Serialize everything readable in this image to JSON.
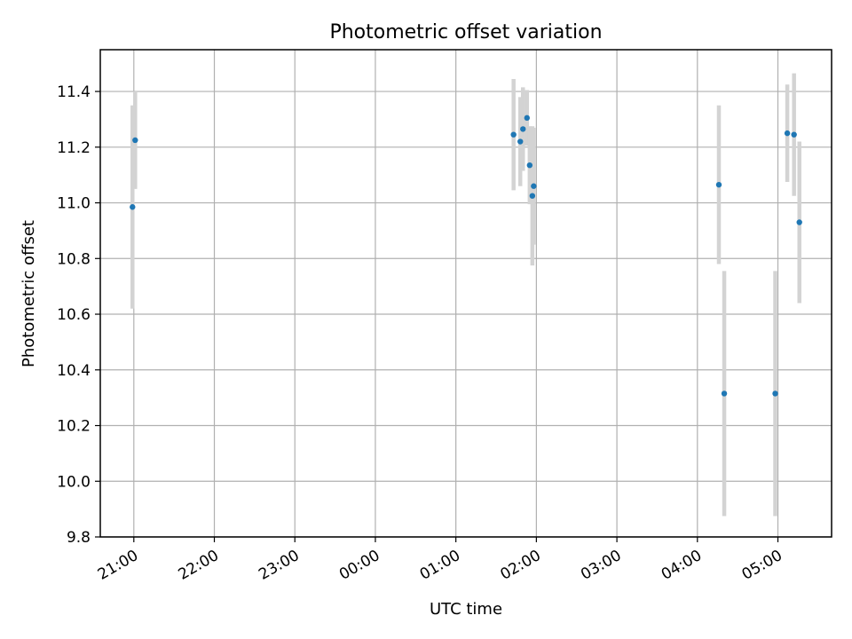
{
  "chart_data": {
    "type": "scatter",
    "title": "Photometric offset variation",
    "xlabel": "UTC time",
    "ylabel": "Photometric offset",
    "x_ticks": [
      "21:00",
      "22:00",
      "23:00",
      "00:00",
      "01:00",
      "02:00",
      "03:00",
      "04:00",
      "05:00"
    ],
    "y_ticks": [
      "9.8",
      "10.0",
      "10.2",
      "10.4",
      "10.6",
      "10.8",
      "11.0",
      "11.2",
      "11.4"
    ],
    "xlim": [
      "20:35",
      "05:40"
    ],
    "ylim": [
      9.8,
      11.55
    ],
    "grid": true,
    "marker_color": "#1f77b4",
    "errorbar_color": "#d3d3d3",
    "series": [
      {
        "points": [
          {
            "time": "20:59",
            "y": 10.985,
            "err": 0.365
          },
          {
            "time": "21:01",
            "y": 11.225,
            "err": 0.175
          },
          {
            "time": "01:43",
            "y": 11.245,
            "err": 0.2
          },
          {
            "time": "01:48",
            "y": 11.22,
            "err": 0.16
          },
          {
            "time": "01:50",
            "y": 11.265,
            "err": 0.15
          },
          {
            "time": "01:53",
            "y": 11.305,
            "err": 0.1
          },
          {
            "time": "01:55",
            "y": 11.135,
            "err": 0.14
          },
          {
            "time": "01:57",
            "y": 11.025,
            "err": 0.25
          },
          {
            "time": "01:58",
            "y": 11.06,
            "err": 0.21
          },
          {
            "time": "04:16",
            "y": 11.065,
            "err": 0.285
          },
          {
            "time": "04:20",
            "y": 10.315,
            "err": 0.44
          },
          {
            "time": "04:58",
            "y": 10.315,
            "err": 0.44
          },
          {
            "time": "05:07",
            "y": 11.25,
            "err": 0.175
          },
          {
            "time": "05:12",
            "y": 11.245,
            "err": 0.22
          },
          {
            "time": "05:16",
            "y": 10.93,
            "err": 0.29
          }
        ]
      }
    ]
  }
}
